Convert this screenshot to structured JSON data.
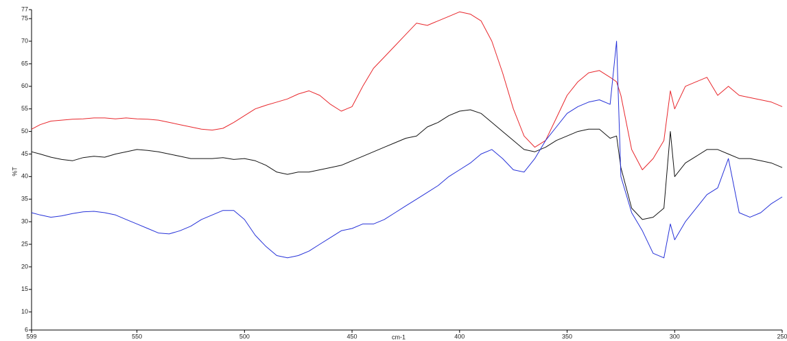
{
  "chart_data": {
    "type": "line",
    "xlabel": "cm-1",
    "ylabel": "%T",
    "x": [
      599,
      595,
      590,
      585,
      580,
      575,
      570,
      565,
      560,
      555,
      550,
      545,
      540,
      535,
      530,
      525,
      520,
      515,
      510,
      505,
      500,
      495,
      490,
      485,
      480,
      475,
      470,
      465,
      460,
      455,
      450,
      445,
      440,
      435,
      430,
      425,
      420,
      415,
      410,
      405,
      400,
      395,
      390,
      385,
      380,
      375,
      370,
      365,
      360,
      355,
      350,
      345,
      340,
      335,
      330,
      327,
      325,
      320,
      315,
      310,
      305,
      302,
      300,
      295,
      290,
      285,
      280,
      275,
      270,
      265,
      260,
      255,
      250
    ],
    "series": [
      {
        "name": "red",
        "color": "#e8252a",
        "values": [
          50.5,
          51.5,
          52.3,
          52.5,
          52.7,
          52.8,
          53,
          53,
          52.8,
          53,
          52.8,
          52.7,
          52.5,
          52,
          51.5,
          51,
          50.5,
          50.3,
          50.7,
          52,
          53.5,
          55,
          55.8,
          56.5,
          57.2,
          58.3,
          59,
          58,
          56,
          54.5,
          55.5,
          60,
          64,
          66.5,
          69,
          71.5,
          74,
          73.5,
          74.5,
          75.5,
          76.5,
          76,
          74.5,
          70,
          63,
          55,
          49,
          46.5,
          48,
          53,
          58,
          61,
          63,
          63.5,
          62,
          61,
          58,
          46,
          41.5,
          44,
          48,
          59,
          55,
          60,
          61,
          62,
          58,
          60,
          58,
          57.5,
          57,
          56.5,
          55.5
        ]
      },
      {
        "name": "black",
        "color": "#111111",
        "values": [
          45.5,
          45,
          44.3,
          43.8,
          43.5,
          44.2,
          44.5,
          44.3,
          45,
          45.5,
          46,
          45.8,
          45.5,
          45,
          44.5,
          44,
          44,
          44,
          44.2,
          43.8,
          44,
          43.5,
          42.5,
          41,
          40.5,
          41,
          41,
          41.5,
          42,
          42.5,
          43.5,
          44.5,
          45.5,
          46.5,
          47.5,
          48.5,
          49,
          51,
          52,
          53.5,
          54.5,
          54.8,
          54,
          52,
          50,
          48,
          46,
          45.5,
          46.5,
          48,
          49,
          50,
          50.5,
          50.5,
          48.5,
          49,
          42,
          33,
          30.5,
          31,
          33,
          50,
          40,
          43,
          44.5,
          46,
          46,
          45,
          44,
          44,
          43.5,
          43,
          42
        ]
      },
      {
        "name": "blue",
        "color": "#2430d8",
        "values": [
          32,
          31.5,
          31,
          31.3,
          31.8,
          32.2,
          32.3,
          32,
          31.5,
          30.5,
          29.5,
          28.5,
          27.5,
          27.3,
          28,
          29,
          30.5,
          31.5,
          32.5,
          32.5,
          30.5,
          27,
          24.5,
          22.5,
          22,
          22.5,
          23.5,
          25,
          26.5,
          28,
          28.5,
          29.5,
          29.5,
          30.5,
          32,
          33.5,
          35,
          36.5,
          38,
          40,
          41.5,
          43,
          45,
          46,
          44,
          41.5,
          41,
          44,
          48,
          51,
          54,
          55.5,
          56.5,
          57,
          56,
          70,
          40,
          32,
          28,
          23,
          22,
          29.5,
          26,
          30,
          33,
          36,
          37.5,
          44,
          32,
          31,
          32,
          34,
          35.5
        ]
      }
    ],
    "xlim": [
      599,
      250
    ],
    "ylim": [
      6,
      77
    ],
    "xticks": [
      599,
      550,
      500,
      450,
      400,
      350,
      300,
      250
    ],
    "yticks": [
      6,
      10,
      15,
      20,
      25,
      30,
      35,
      40,
      45,
      50,
      55,
      60,
      65,
      70,
      75,
      77
    ]
  }
}
